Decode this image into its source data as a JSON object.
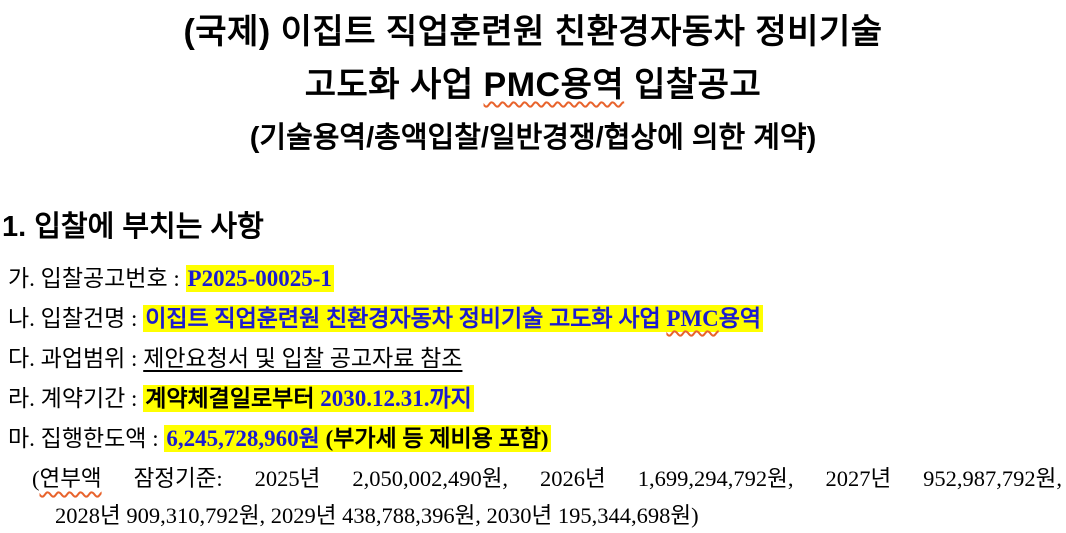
{
  "document": {
    "title": {
      "line1": "(국제) 이집트 직업훈련원 친환경자동차 정비기술",
      "line2": {
        "pre": "고도화 사업 ",
        "misspelled": "PMC용역",
        "post": " 입찰공고"
      },
      "line3": "(기술용역/총액입찰/일반경쟁/협상에 의한 계약)"
    },
    "section1": {
      "heading": "1. 입찰에 부치는 사항",
      "items": {
        "ga": {
          "label": "가. 입찰공고번호 : ",
          "value": "P2025-00025-1"
        },
        "na": {
          "label": "나. 입찰건명 : ",
          "value_pre": "이집트 직업훈련원 친환경자동차 정비기술 고도화 사업 ",
          "value_misspelled": "PMC",
          "value_post": "용역"
        },
        "da": {
          "label": "다. 과업범위 : ",
          "value": "제안요청서 및 입찰 공고자료 참조"
        },
        "ra": {
          "label": "라. 계약기간 : ",
          "value_black": "계약체결일로부터 ",
          "value_blue": "2030.12.31.까지"
        },
        "ma": {
          "label": "마. 집행한도액 : ",
          "value_blue": "6,245,728,960원",
          "value_black": " (부가세 등 제비용 포함)"
        }
      },
      "annual_note": {
        "line1_open": "(",
        "line1_misspelled": "연부액",
        "line1_rest": " 잠정기준: 2025년 2,050,002,490원, 2026년 1,699,294,792원, 2027년 952,987,792원,",
        "line2": "2028년 909,310,792원, 2029년 438,788,396원, 2030년 195,344,698원)"
      }
    },
    "colors": {
      "highlight": "#ffff00",
      "value_blue": "#1b1bd0",
      "spellcheck_underline": "#e8632c"
    }
  }
}
